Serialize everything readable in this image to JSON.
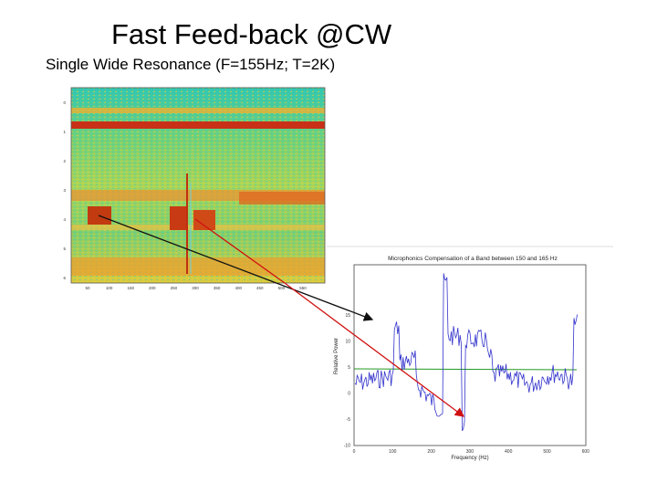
{
  "slide": {
    "title": "Fast Feed-back @CW",
    "subtitle": "Single Wide Resonance (F=155Hz; T=2K)"
  },
  "spectrogram": {
    "y_ticks": [
      "0",
      "1",
      "2",
      "3",
      "4",
      "5",
      "6"
    ],
    "x_ticks": [
      "50",
      "100",
      "150",
      "200",
      "250",
      "300",
      "350",
      "400",
      "450",
      "500",
      "550"
    ]
  },
  "plot": {
    "title": "Microphonics Compensation of a Band between 150 and 165 Hz",
    "ylabel": "Relative Power",
    "xlabel": "Frequency (Hz)",
    "y_ticks": [
      "15",
      "10",
      "5",
      "0",
      "-5",
      "-10"
    ],
    "x_ticks": [
      "0",
      "100",
      "200",
      "300",
      "400",
      "500",
      "600"
    ]
  },
  "colors": {
    "arrow_black": "#111111",
    "arrow_red": "#d01010",
    "trace_blue": "#3333cc",
    "trace_green": "#229922"
  }
}
